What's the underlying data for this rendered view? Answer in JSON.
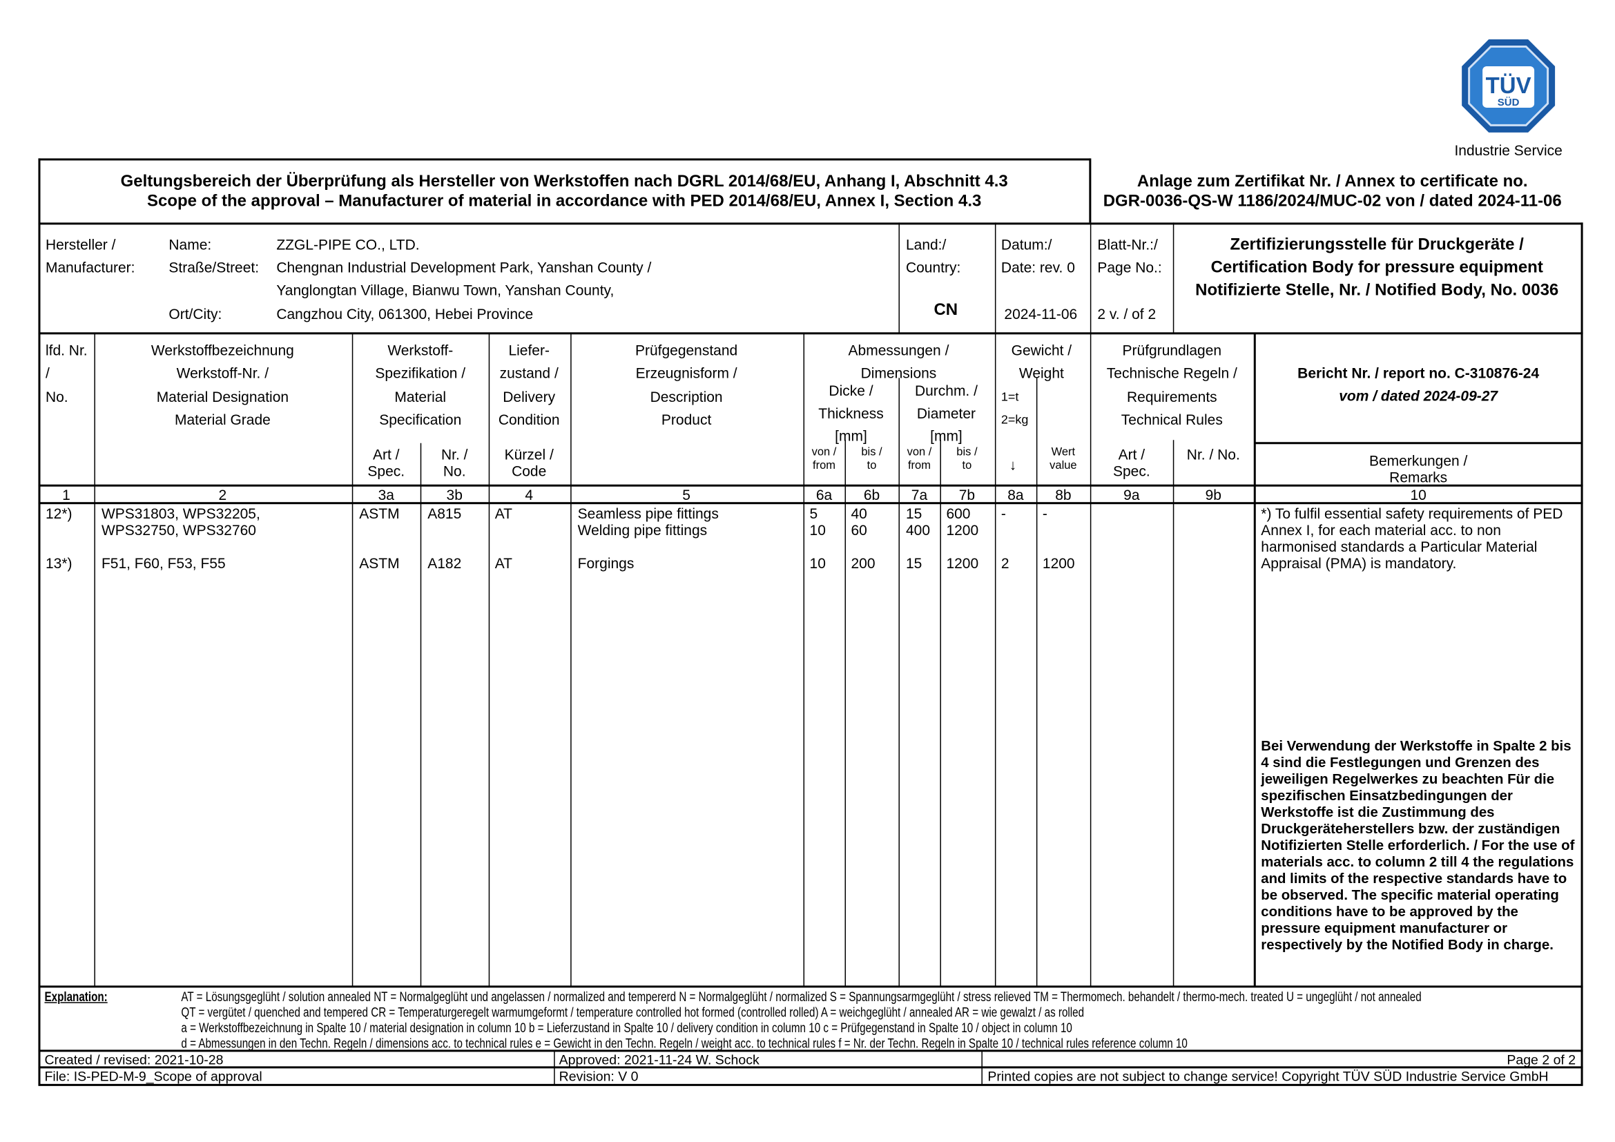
{
  "logo": {
    "brand": "TÜV SÜD",
    "line1": "TÜV",
    "line2": "SÜD",
    "subtitle": "Industrie Service",
    "color": "#1a5aa6"
  },
  "title": {
    "de": "Geltungsbereich der Überprüfung als Hersteller von Werkstoffen nach DGRL 2014/68/EU, Anhang I, Abschnitt 4.3",
    "en": "Scope of the approval – Manufacturer of material in accordance with PED 2014/68/EU, Annex I, Section 4.3"
  },
  "annex": {
    "line1": "Anlage zum Zertifikat Nr. / Annex to certificate no.",
    "line2": "DGR-0036-QS-W 1186/2024/MUC-02 von / dated 2024-11-06"
  },
  "manufacturer": {
    "label1": "Hersteller /",
    "label2": "Manufacturer:",
    "name_label": "Name:",
    "name": "ZZGL-PIPE CO., LTD.",
    "street_label": "Straße/Street:",
    "street1": "Chengnan Industrial Development Park, Yanshan County /",
    "street2": "Yanglongtan Village, Bianwu Town, Yanshan County,",
    "city_label": "Ort/City:",
    "city": "Cangzhou City, 061300, Hebei Province"
  },
  "country": {
    "label1": "Land:/",
    "label2": "Country:",
    "value": "CN"
  },
  "date": {
    "label1": "Datum:/",
    "label2": "Date: rev. 0",
    "value": "2024-11-06"
  },
  "sheet": {
    "label1": "Blatt-Nr.:/",
    "label2": "Page No.:",
    "value": "2 v. / of 2"
  },
  "cert_body": {
    "line1": "Zertifizierungsstelle für Druckgeräte /",
    "line2": "Certification Body for pressure equipment",
    "line3": "Notifizierte Stelle, Nr. / Notified Body, No. 0036"
  },
  "headers": {
    "c1": [
      "lfd. Nr.",
      "/",
      "No."
    ],
    "c2": [
      "Werkstoffbezeichnung",
      "Werkstoff-Nr. /",
      "Material Designation",
      "Material Grade"
    ],
    "c3": [
      "Werkstoff-",
      "Spezifikation /",
      "Material",
      "Specification"
    ],
    "c3a": [
      "Art /",
      "Spec."
    ],
    "c3b": [
      "Nr. /",
      "No."
    ],
    "c4": [
      "Liefer-",
      "zustand /",
      "Delivery",
      "Condition"
    ],
    "c4sub": [
      "Kürzel /",
      "Code"
    ],
    "c5": [
      "Prüfgegenstand",
      "Erzeugnisform /",
      "Description",
      "Product"
    ],
    "c6_7": [
      "Abmessungen /",
      "Dimensions"
    ],
    "c6": [
      "Dicke /",
      "Thickness",
      "[mm]"
    ],
    "c7": [
      "Durchm. /",
      "Diameter",
      "[mm]"
    ],
    "from": [
      "von /",
      "from"
    ],
    "to": [
      "bis /",
      "to"
    ],
    "c8": [
      "Gewicht /",
      "Weight"
    ],
    "c8a": [
      "1=t",
      "2=kg",
      "↓"
    ],
    "c8b": [
      "Wert",
      "value"
    ],
    "c9": [
      "Prüfgrundlagen",
      "Technische Regeln /",
      "Requirements",
      "Technical Rules"
    ],
    "c9a": [
      "Art /",
      "Spec."
    ],
    "c9b": "Nr. / No.",
    "c10_report": "Bericht Nr. / report no. C-310876-24",
    "c10_dated": "vom / dated 2024-09-27",
    "c10_remarks": [
      "Bemerkungen /",
      "Remarks"
    ]
  },
  "col_numbers": [
    "1",
    "2",
    "3a",
    "3b",
    "4",
    "5",
    "6a",
    "6b",
    "7a",
    "7b",
    "8a",
    "8b",
    "9a",
    "9b",
    "10"
  ],
  "rows": [
    {
      "no": "12*)",
      "material": [
        "WPS31803, WPS32205,",
        "WPS32750, WPS32760"
      ],
      "spec": "ASTM",
      "spec_no": "A815",
      "code": "AT",
      "product": [
        "Seamless pipe fittings",
        "Welding pipe fittings"
      ],
      "thk_from": [
        "5",
        "10"
      ],
      "thk_to": [
        "40",
        "60"
      ],
      "dia_from": [
        "15",
        "400"
      ],
      "dia_to": [
        "600",
        "1200"
      ],
      "w_unit": "-",
      "w_value": "-"
    },
    {
      "no": "13*)",
      "material": [
        "F51, F60, F53, F55"
      ],
      "spec": "ASTM",
      "spec_no": "A182",
      "code": "AT",
      "product": [
        "Forgings"
      ],
      "thk_from": [
        "10"
      ],
      "thk_to": [
        "200"
      ],
      "dia_from": [
        "15"
      ],
      "dia_to": [
        "1200"
      ],
      "w_unit": "2",
      "w_value": "1200"
    }
  ],
  "remarks": {
    "note": "*) To fulfil essential safety requirements of PED Annex I, for each material acc. to non harmonised standards a Particular Material Appraisal (PMA) is mandatory.",
    "bold": "Bei Verwendung der Werkstoffe in Spalte 2 bis 4 sind die Festlegungen und Grenzen des jeweiligen Regelwerkes zu beachten Für die spezifischen Einsatzbedingungen der Werkstoffe ist die Zustimmung des Druckgeräteherstellers bzw. der zuständigen Notifizierten Stelle erforderlich. / For the use of materials acc. to column 2 till 4 the regulations and limits of the respective standards have to be observed. The specific material operating conditions have to be approved by the pressure equipment manufacturer or respectively by the Notified Body in charge."
  },
  "explanation": {
    "label": "Explanation:",
    "line1": "AT = Lösungsgeglüht / solution annealed   NT = Normalgeglüht und angelassen / normalized and tempererd   N = Normalgeglüht / normalized   S = Spannungsarmgeglüht / stress relieved   TM  = Thermomech. behandelt / thermo-mech. treated   U = ungeglüht / not annealed",
    "line2": "QT = vergütet / quenched and tempered   CR = Temperaturgeregelt warmumgeformt / temperature controlled hot formed (controlled rolled)   A =  weichgeglüht / annealed   AR = wie gewalzt / as rolled",
    "line3": "a = Werkstoffbezeichnung in Spalte 10 / material designation in column 10   b = Lieferzustand in Spalte 10 / delivery condition in column 10   c = Prüfgegenstand in Spalte 10 / object in column 10",
    "line4": "d = Abmessungen in den Techn. Regeln / dimensions acc. to technical rules   e = Gewicht in den Techn. Regeln / weight acc. to technical rules   f = Nr. der Techn. Regeln in Spalte 10 / technical rules reference column 10"
  },
  "footer": {
    "created": "Created / revised: 2021-10-28",
    "file": "File: IS-PED-M-9_Scope of approval",
    "approved": "Approved: 2021-11-24 W. Schock",
    "revision": "Revision:   V 0",
    "page": "Page 2 of 2",
    "copyright": "Printed copies are not subject to change service! Copyright TÜV SÜD Industrie Service GmbH"
  }
}
